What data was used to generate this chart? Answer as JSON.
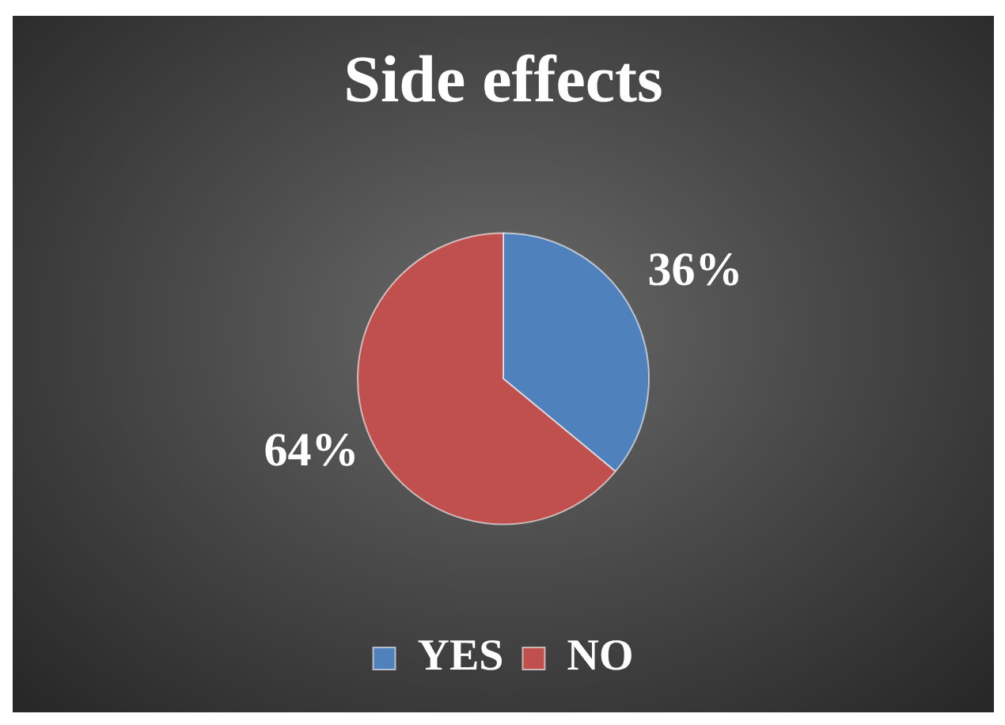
{
  "chart_data": {
    "type": "pie",
    "title": "Side effects",
    "categories": [
      "YES",
      "NO"
    ],
    "values": [
      36,
      64
    ],
    "colors": [
      "#4f81bd",
      "#c0504d"
    ],
    "value_labels": [
      "36%",
      "64%"
    ],
    "legend": "bottom"
  }
}
